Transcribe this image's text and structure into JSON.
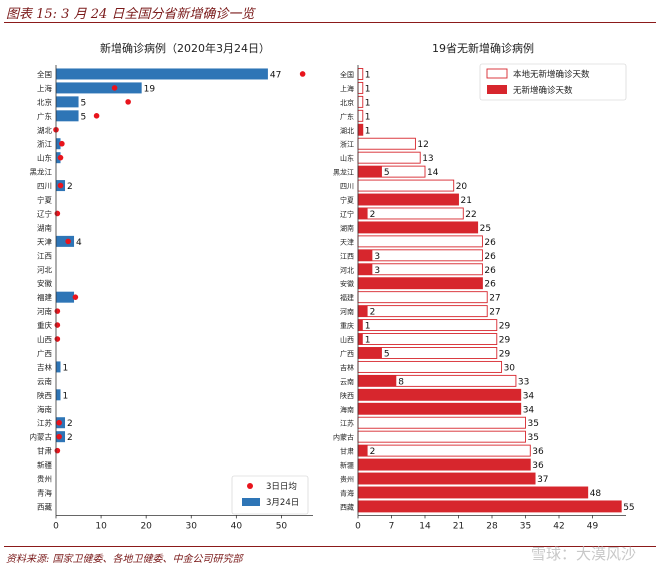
{
  "page": {
    "title": "图表 15: 3 月 24 日全国分省新增确诊一览",
    "source": "资料来源: 国家卫健委、各地卫健委、中金公司研究部",
    "watermark": "雪球：大漠风沙"
  },
  "colors": {
    "bar_blue": "#2e75b6",
    "dot_red": "#e8141c",
    "bar_red": "#d7262d",
    "axis": "#333333",
    "header_red": "#8b1a1a"
  },
  "chart_data": [
    {
      "type": "bar",
      "orientation": "horizontal",
      "title": "新增确诊病例（2020年3月24日）",
      "categories": [
        "全国",
        "上海",
        "北京",
        "广东",
        "湖北",
        "浙江",
        "山东",
        "黑龙江",
        "四川",
        "宁夏",
        "辽宁",
        "湖南",
        "天津",
        "江西",
        "河北",
        "安徽",
        "福建",
        "河南",
        "重庆",
        "山西",
        "广西",
        "吉林",
        "云南",
        "陕西",
        "海南",
        "江苏",
        "内蒙古",
        "甘肃",
        "新疆",
        "贵州",
        "青海",
        "西藏"
      ],
      "series": [
        {
          "name": "3月24日",
          "kind": "bar",
          "color": "#2e75b6",
          "values": [
            47,
            19,
            5,
            5,
            0,
            1,
            1,
            0,
            2,
            0,
            0,
            0,
            4,
            0,
            0,
            0,
            4,
            0,
            0,
            0,
            0,
            1,
            0,
            1,
            0,
            2,
            2,
            0,
            0,
            0,
            0,
            0
          ]
        },
        {
          "name": "3日日均",
          "kind": "dot",
          "color": "#e8141c",
          "values": [
            54.7,
            13,
            16,
            9,
            0,
            1.3,
            1,
            null,
            1,
            null,
            0.3,
            null,
            2.7,
            null,
            null,
            null,
            4.3,
            0.3,
            0.3,
            0.3,
            null,
            null,
            null,
            null,
            null,
            0.7,
            0.7,
            0.3,
            null,
            null,
            null,
            null
          ]
        }
      ],
      "data_labels": [
        "47",
        "19",
        "5",
        "5",
        "",
        "",
        "",
        "",
        "2",
        "",
        "",
        "",
        "4",
        "",
        "",
        "",
        "",
        "",
        "",
        "",
        "",
        "1",
        "",
        "1",
        "",
        "2",
        "2",
        "",
        "",
        "",
        "",
        ""
      ],
      "xlim": [
        0,
        57
      ],
      "xticks": [
        0,
        10,
        20,
        30,
        40,
        50
      ],
      "legend_position": "bottom-right",
      "grid": false
    },
    {
      "type": "bar",
      "orientation": "horizontal",
      "title": "19省无新增确诊病例",
      "categories": [
        "全国",
        "上海",
        "北京",
        "广东",
        "湖北",
        "浙江",
        "山东",
        "黑龙江",
        "四川",
        "宁夏",
        "辽宁",
        "湖南",
        "天津",
        "江西",
        "河北",
        "安徽",
        "福建",
        "河南",
        "重庆",
        "山西",
        "广西",
        "吉林",
        "云南",
        "陕西",
        "海南",
        "江苏",
        "内蒙古",
        "甘肃",
        "新疆",
        "贵州",
        "青海",
        "西藏"
      ],
      "series": [
        {
          "name": "本地无新增确诊天数",
          "kind": "outline",
          "values": [
            1,
            1,
            1,
            1,
            1,
            12,
            13,
            14,
            20,
            21,
            22,
            25,
            26,
            26,
            26,
            26,
            27,
            27,
            29,
            29,
            29,
            30,
            33,
            34,
            34,
            35,
            35,
            36,
            36,
            37,
            48,
            55
          ]
        },
        {
          "name": "无新增确诊天数",
          "kind": "filled",
          "color": "#d7262d",
          "values": [
            0,
            0,
            0,
            0,
            1,
            0,
            0,
            5,
            0,
            21,
            2,
            25,
            0,
            3,
            3,
            26,
            0,
            2,
            1,
            1,
            5,
            0,
            8,
            34,
            34,
            0,
            0,
            2,
            36,
            37,
            48,
            55
          ]
        }
      ],
      "data_labels": [
        "1",
        "1",
        "1",
        "1",
        "1",
        "12",
        "13",
        "14",
        "20",
        "21",
        "22",
        "25",
        "26",
        "26",
        "26",
        "26",
        "27",
        "27",
        "29",
        "29",
        "29",
        "30",
        "33",
        "34",
        "34",
        "35",
        "35",
        "36",
        "36",
        "37",
        "48",
        "55"
      ],
      "inner_labels": [
        "",
        "",
        "",
        "",
        "",
        "",
        "",
        "5",
        "",
        "",
        "2",
        "",
        "",
        "3",
        "3",
        "",
        "",
        "2",
        "1",
        "1",
        "5",
        "",
        "8",
        "",
        "",
        "",
        "",
        "2",
        "",
        "",
        "",
        ""
      ],
      "xlim": [
        0,
        56
      ],
      "xticks": [
        0,
        7,
        14,
        21,
        28,
        35,
        42,
        49
      ],
      "legend_position": "top-right",
      "grid": false
    }
  ]
}
